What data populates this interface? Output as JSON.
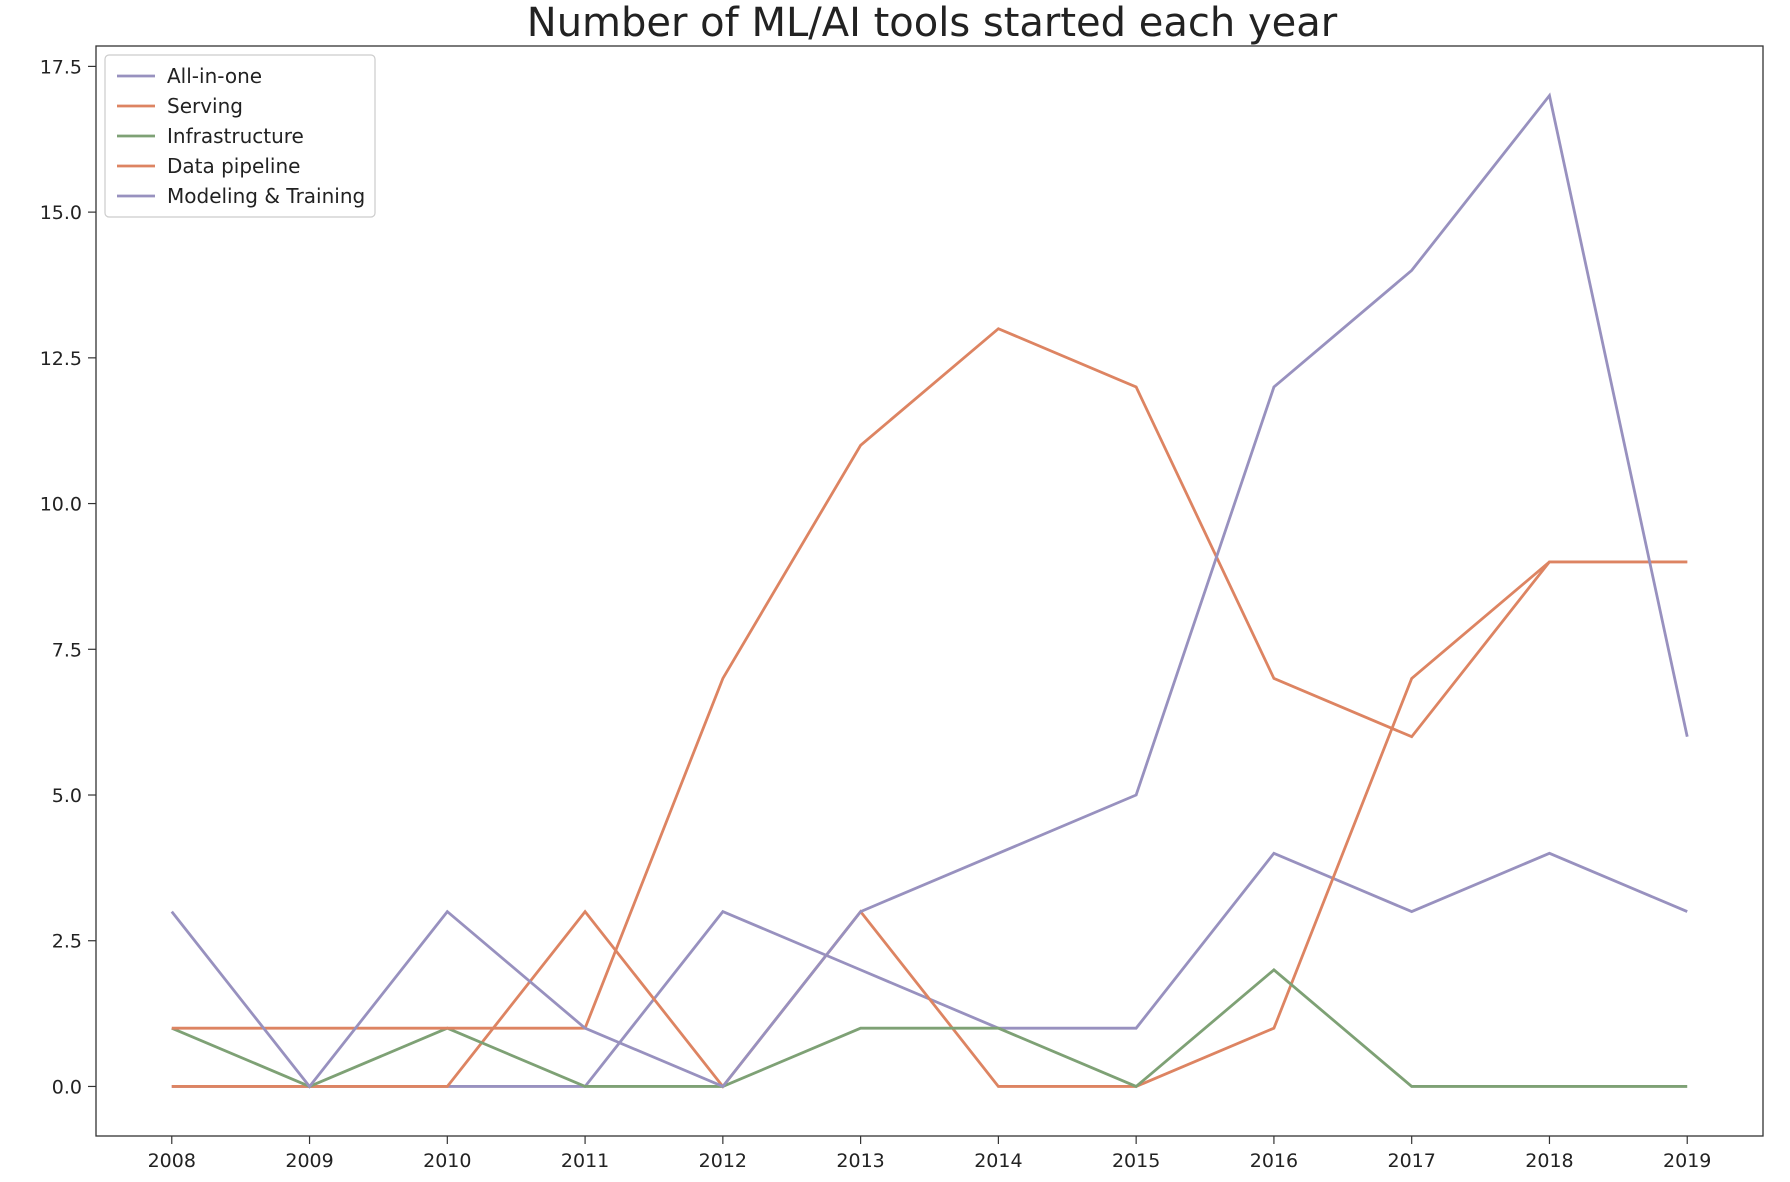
{
  "chart_data": {
    "type": "line",
    "title": "Number of ML/AI tools started each year",
    "xlabel": "",
    "ylabel": "",
    "x": [
      2008,
      2009,
      2010,
      2011,
      2012,
      2013,
      2014,
      2015,
      2016,
      2017,
      2018,
      2019
    ],
    "xticks": [
      "2008",
      "2009",
      "2010",
      "2011",
      "2012",
      "2013",
      "2014",
      "2015",
      "2016",
      "2017",
      "2018",
      "2019"
    ],
    "yticks": [
      "0.0",
      "2.5",
      "5.0",
      "7.5",
      "10.0",
      "12.5",
      "15.0",
      "17.5"
    ],
    "ylim": [
      -0.85,
      17.85
    ],
    "xlim": [
      2007.45,
      2019.55
    ],
    "grid": false,
    "legend_position": "top-left",
    "series": [
      {
        "name": "All-in-one",
        "color": "#9891bf",
        "values": [
          0,
          0,
          0,
          0,
          3,
          2,
          1,
          1,
          4,
          3,
          4,
          3
        ]
      },
      {
        "name": "Serving",
        "color": "#dd8462",
        "values": [
          0,
          0,
          0,
          3,
          0,
          3,
          0,
          0,
          1,
          7,
          9,
          9
        ]
      },
      {
        "name": "Infrastructure",
        "color": "#7ea175",
        "values": [
          1,
          0,
          1,
          0,
          0,
          1,
          1,
          0,
          2,
          0,
          0,
          0
        ]
      },
      {
        "name": "Data pipeline",
        "color": "#dd8462",
        "values": [
          1,
          1,
          1,
          1,
          7,
          11,
          13,
          12,
          7,
          6,
          9,
          9
        ]
      },
      {
        "name": "Modeling & Training",
        "color": "#9891bf",
        "values": [
          3,
          0,
          3,
          1,
          0,
          3,
          4,
          5,
          12,
          14,
          17,
          6
        ]
      }
    ]
  }
}
